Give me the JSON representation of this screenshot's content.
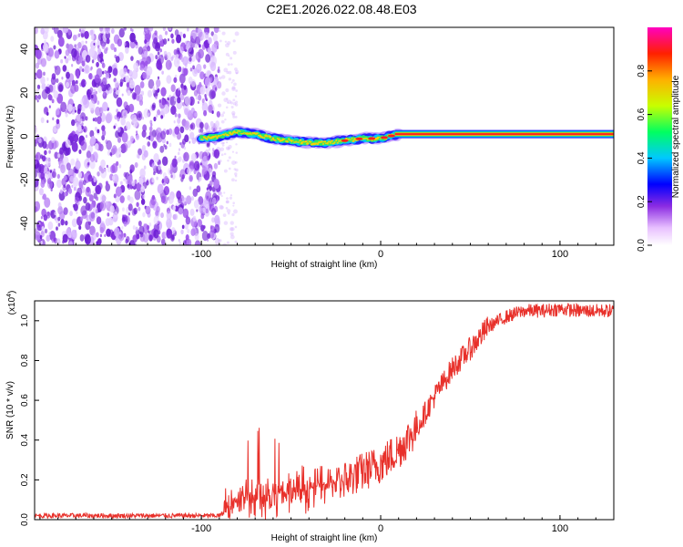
{
  "title": "C2E1.2026.022.08.48.E03",
  "chart_data": [
    {
      "type": "heatmap",
      "name": "spectrogram",
      "xlabel": "Height of straight line (km)",
      "ylabel": "Frequency (Hz)",
      "xlim": [
        -193,
        130
      ],
      "ylim": [
        -50,
        50
      ],
      "xticks": [
        -100,
        0,
        100
      ],
      "yticks": [
        -40,
        -20,
        0,
        20,
        40
      ],
      "noise_region_x": [
        -193,
        -90
      ],
      "signal_track": [
        {
          "x": -100,
          "y": -1
        },
        {
          "x": -90,
          "y": 0
        },
        {
          "x": -80,
          "y": 2
        },
        {
          "x": -70,
          "y": 1
        },
        {
          "x": -60,
          "y": -1
        },
        {
          "x": -50,
          "y": -2
        },
        {
          "x": -40,
          "y": -3
        },
        {
          "x": -30,
          "y": -3
        },
        {
          "x": -20,
          "y": -2
        },
        {
          "x": -10,
          "y": -1
        },
        {
          "x": 0,
          "y": -1
        },
        {
          "x": 5,
          "y": 0
        },
        {
          "x": 10,
          "y": 1
        },
        {
          "x": 130,
          "y": 1
        }
      ],
      "colorbar": {
        "label": "Normalized spectral amplitude",
        "range": [
          0,
          1
        ],
        "ticks": [
          "0.0",
          "0.2",
          "0.4",
          "0.6",
          "0.8"
        ]
      }
    },
    {
      "type": "line",
      "name": "snr",
      "xlabel": "Height of straight line (km)",
      "ylabel": "SNR (10 * v/v)",
      "y_multiplier_label": "(x10",
      "y_multiplier_exp": "4",
      "xlim": [
        -193,
        130
      ],
      "ylim": [
        0,
        1.1
      ],
      "xticks": [
        -100,
        0,
        100
      ],
      "yticks": [
        "0.0",
        "0.2",
        "0.4",
        "0.6",
        "0.8",
        "1.0"
      ],
      "color": "#e8302a",
      "trend": [
        {
          "x": -193,
          "y": 0.02
        },
        {
          "x": -90,
          "y": 0.02
        },
        {
          "x": -85,
          "y": 0.05
        },
        {
          "x": -80,
          "y": 0.11
        },
        {
          "x": -70,
          "y": 0.13
        },
        {
          "x": -60,
          "y": 0.13
        },
        {
          "x": -50,
          "y": 0.14
        },
        {
          "x": -40,
          "y": 0.16
        },
        {
          "x": -30,
          "y": 0.18
        },
        {
          "x": -20,
          "y": 0.2
        },
        {
          "x": -10,
          "y": 0.24
        },
        {
          "x": 0,
          "y": 0.28
        },
        {
          "x": 10,
          "y": 0.35
        },
        {
          "x": 20,
          "y": 0.46
        },
        {
          "x": 30,
          "y": 0.62
        },
        {
          "x": 40,
          "y": 0.76
        },
        {
          "x": 50,
          "y": 0.86
        },
        {
          "x": 60,
          "y": 0.97
        },
        {
          "x": 70,
          "y": 1.02
        },
        {
          "x": 80,
          "y": 1.05
        },
        {
          "x": 90,
          "y": 1.05
        },
        {
          "x": 100,
          "y": 1.06
        },
        {
          "x": 110,
          "y": 1.05
        },
        {
          "x": 120,
          "y": 1.05
        },
        {
          "x": 130,
          "y": 1.05
        }
      ]
    }
  ]
}
